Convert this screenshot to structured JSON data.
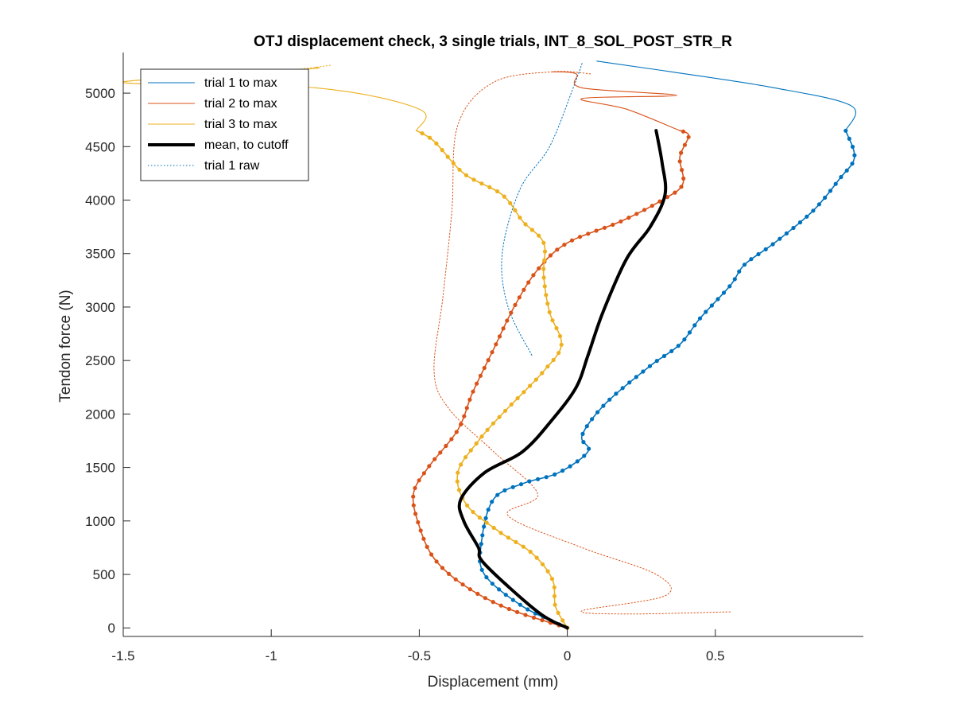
{
  "chart_data": {
    "type": "line",
    "title": "OTJ displacement check, 3 single trials, INT_8_SOL_POST_STR_R",
    "xlabel": "Displacement (mm)",
    "ylabel": "Tendon force (N)",
    "xlim": [
      -1.5,
      1.0
    ],
    "ylim": [
      -80,
      5380
    ],
    "xticks": [
      -1.5,
      -1,
      -0.5,
      0,
      0.5
    ],
    "xtick_labels": [
      "-1.5",
      "-1",
      "-0.5",
      "0",
      "0.5"
    ],
    "yticks": [
      0,
      500,
      1000,
      1500,
      2000,
      2500,
      3000,
      3500,
      4000,
      4500,
      5000
    ],
    "ytick_labels": [
      "0",
      "500",
      "1000",
      "1500",
      "2000",
      "2500",
      "3000",
      "3500",
      "4000",
      "4500",
      "5000"
    ],
    "grid": false,
    "legend_position": "top-left",
    "legend": [
      {
        "label": "trial 1 to max",
        "color": "#0072BD",
        "style": "thin"
      },
      {
        "label": "trial 2 to max",
        "color": "#D95319",
        "style": "thin"
      },
      {
        "label": "trial 3 to max",
        "color": "#EDB120",
        "style": "thin"
      },
      {
        "label": "mean, to cutoff",
        "color": "#000000",
        "style": "thick"
      },
      {
        "label": "trial 1 raw",
        "color": "#0072BD",
        "style": "dotted"
      }
    ],
    "series": [
      {
        "color": "#0072BD",
        "style": "markers",
        "points": [
          [
            0,
            0
          ],
          [
            -0.15,
            200
          ],
          [
            -0.28,
            500
          ],
          [
            -0.29,
            800
          ],
          [
            -0.25,
            1200
          ],
          [
            -0.15,
            1350
          ],
          [
            -0.03,
            1450
          ],
          [
            0.07,
            1650
          ],
          [
            0.05,
            1800
          ],
          [
            0.13,
            2100
          ],
          [
            0.28,
            2450
          ],
          [
            0.38,
            2650
          ],
          [
            0.45,
            2900
          ],
          [
            0.55,
            3200
          ],
          [
            0.6,
            3400
          ],
          [
            0.7,
            3600
          ],
          [
            0.83,
            3900
          ],
          [
            0.92,
            4200
          ],
          [
            0.97,
            4400
          ],
          [
            0.94,
            4650
          ]
        ]
      },
      {
        "color": "#0072BD",
        "style": "thin",
        "points": [
          [
            0.94,
            4650
          ],
          [
            0.96,
            4880
          ],
          [
            0.7,
            5050
          ],
          [
            0.35,
            5200
          ],
          [
            0.1,
            5300
          ]
        ]
      },
      {
        "color": "#D95319",
        "style": "markers",
        "points": [
          [
            0,
            0
          ],
          [
            -0.2,
            180
          ],
          [
            -0.35,
            400
          ],
          [
            -0.45,
            650
          ],
          [
            -0.5,
            950
          ],
          [
            -0.52,
            1250
          ],
          [
            -0.47,
            1500
          ],
          [
            -0.37,
            1850
          ],
          [
            -0.32,
            2200
          ],
          [
            -0.25,
            2600
          ],
          [
            -0.18,
            3000
          ],
          [
            -0.1,
            3350
          ],
          [
            0,
            3600
          ],
          [
            0.18,
            3800
          ],
          [
            0.32,
            4000
          ],
          [
            0.39,
            4150
          ],
          [
            0.38,
            4400
          ],
          [
            0.41,
            4600
          ],
          [
            0.38,
            4650
          ]
        ]
      },
      {
        "color": "#D95319",
        "style": "thin",
        "points": [
          [
            0.38,
            4650
          ],
          [
            0.2,
            4850
          ],
          [
            0.05,
            4950
          ],
          [
            0.37,
            4980
          ],
          [
            0.05,
            5050
          ],
          [
            0.03,
            5180
          ],
          [
            -0.05,
            5200
          ]
        ]
      },
      {
        "color": "#EDB120",
        "style": "markers",
        "points": [
          [
            0,
            0
          ],
          [
            -0.04,
            200
          ],
          [
            -0.05,
            450
          ],
          [
            -0.12,
            700
          ],
          [
            -0.23,
            900
          ],
          [
            -0.34,
            1150
          ],
          [
            -0.37,
            1450
          ],
          [
            -0.3,
            1750
          ],
          [
            -0.22,
            2000
          ],
          [
            -0.08,
            2400
          ],
          [
            -0.02,
            2650
          ],
          [
            -0.06,
            2950
          ],
          [
            -0.08,
            3300
          ],
          [
            -0.08,
            3600
          ],
          [
            -0.15,
            3800
          ],
          [
            -0.22,
            4050
          ],
          [
            -0.35,
            4250
          ],
          [
            -0.45,
            4550
          ],
          [
            -0.51,
            4650
          ]
        ]
      },
      {
        "color": "#EDB120",
        "style": "thin",
        "points": [
          [
            -0.51,
            4650
          ],
          [
            -0.5,
            4850
          ],
          [
            -0.85,
            5050
          ],
          [
            -1.5,
            5100
          ],
          [
            -0.9,
            5220
          ],
          [
            -0.85,
            5240
          ]
        ]
      },
      {
        "color": "#000000",
        "style": "thick",
        "points": [
          [
            0,
            0
          ],
          [
            -0.1,
            150
          ],
          [
            -0.28,
            600
          ],
          [
            -0.3,
            750
          ],
          [
            -0.35,
            1000
          ],
          [
            -0.36,
            1200
          ],
          [
            -0.28,
            1450
          ],
          [
            -0.15,
            1650
          ],
          [
            -0.05,
            1950
          ],
          [
            0.03,
            2250
          ],
          [
            0.07,
            2550
          ],
          [
            0.12,
            2950
          ],
          [
            0.2,
            3450
          ],
          [
            0.28,
            3750
          ],
          [
            0.33,
            4050
          ],
          [
            0.32,
            4350
          ],
          [
            0.3,
            4650
          ]
        ]
      },
      {
        "color": "#0072BD",
        "style": "dotted",
        "points": [
          [
            -0.12,
            2550
          ],
          [
            -0.2,
            3000
          ],
          [
            -0.22,
            3500
          ],
          [
            -0.16,
            4100
          ],
          [
            -0.06,
            4500
          ],
          [
            0.02,
            5050
          ],
          [
            0.05,
            5280
          ]
        ]
      },
      {
        "color": "#D95319",
        "style": "dotted",
        "points": [
          [
            0.55,
            150
          ],
          [
            0.2,
            130
          ],
          [
            0.05,
            160
          ],
          [
            0.33,
            300
          ],
          [
            0.3,
            500
          ],
          [
            0.05,
            750
          ],
          [
            -0.2,
            1050
          ],
          [
            -0.1,
            1250
          ],
          [
            -0.25,
            1650
          ],
          [
            -0.4,
            2050
          ],
          [
            -0.45,
            2400
          ],
          [
            -0.42,
            3100
          ],
          [
            -0.39,
            3900
          ],
          [
            -0.37,
            4700
          ],
          [
            -0.25,
            5100
          ],
          [
            -0.05,
            5200
          ],
          [
            0.08,
            5180
          ]
        ]
      },
      {
        "color": "#EDB120",
        "style": "dotted",
        "points": [
          [
            -1.5,
            5110
          ],
          [
            -1.0,
            5200
          ],
          [
            -0.8,
            5260
          ]
        ]
      }
    ]
  }
}
